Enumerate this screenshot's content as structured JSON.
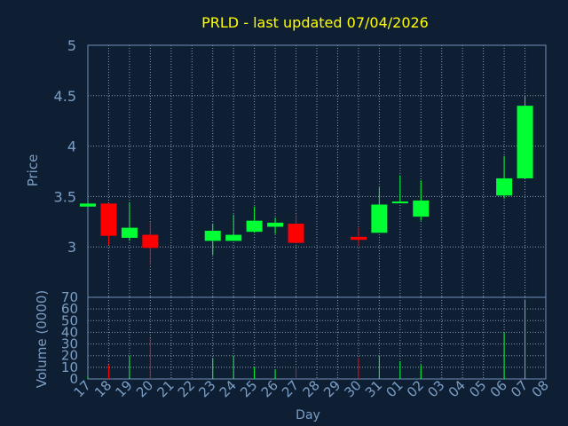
{
  "chart_data": {
    "type": "candlestick",
    "title": "PRLD - last updated 07/04/2026",
    "xlabel": "Day",
    "price_panel": {
      "ylabel": "Price",
      "ylim": [
        2.5,
        5.0
      ],
      "yticks": [
        "3",
        "3.5",
        "4",
        "4.5",
        "5"
      ],
      "ytick_values": [
        3.0,
        3.5,
        4.0,
        4.5,
        5.0
      ],
      "grid": true
    },
    "volume_panel": {
      "ylabel": "Volume (0000)",
      "ylim": [
        0,
        70
      ],
      "yticks": [
        "0",
        "10",
        "20",
        "30",
        "40",
        "50",
        "60",
        "70"
      ],
      "ytick_values": [
        0,
        10,
        20,
        30,
        40,
        50,
        60,
        70
      ],
      "grid": true
    },
    "x_ticks": [
      "17",
      "18",
      "19",
      "20",
      "21",
      "22",
      "23",
      "24",
      "25",
      "26",
      "27",
      "28",
      "29",
      "30",
      "31",
      "01",
      "02",
      "03",
      "04",
      "05",
      "06",
      "07",
      "08"
    ],
    "candles": [
      {
        "day": "17",
        "open": 3.4,
        "close": 3.43,
        "high": 3.44,
        "low": 3.4,
        "volume": 2
      },
      {
        "day": "18",
        "open": 3.43,
        "close": 3.11,
        "high": 3.43,
        "low": 3.02,
        "volume": 12
      },
      {
        "day": "19",
        "open": 3.09,
        "close": 3.19,
        "high": 3.44,
        "low": 3.06,
        "volume": 20
      },
      {
        "day": "20",
        "open": 3.12,
        "close": 2.99,
        "high": 3.25,
        "low": 2.82,
        "volume": 35
      },
      {
        "day": "23",
        "open": 3.06,
        "close": 3.16,
        "high": 3.23,
        "low": 2.92,
        "volume": 18
      },
      {
        "day": "24",
        "open": 3.06,
        "close": 3.12,
        "high": 3.32,
        "low": 3.06,
        "volume": 20
      },
      {
        "day": "25",
        "open": 3.15,
        "close": 3.26,
        "high": 3.4,
        "low": 3.14,
        "volume": 10
      },
      {
        "day": "26",
        "open": 3.2,
        "close": 3.24,
        "high": 3.29,
        "low": 3.13,
        "volume": 8
      },
      {
        "day": "27",
        "open": 3.23,
        "close": 3.04,
        "high": 3.32,
        "low": 3.04,
        "volume": 10
      },
      {
        "day": "30",
        "open": 3.1,
        "close": 3.07,
        "high": 3.19,
        "low": 3.01,
        "volume": 18
      },
      {
        "day": "31",
        "open": 3.14,
        "close": 3.42,
        "high": 3.59,
        "low": 3.14,
        "volume": 20
      },
      {
        "day": "01",
        "open": 3.44,
        "close": 3.45,
        "high": 3.71,
        "low": 3.44,
        "volume": 15
      },
      {
        "day": "02",
        "open": 3.3,
        "close": 3.46,
        "high": 3.66,
        "low": 3.26,
        "volume": 12
      },
      {
        "day": "06",
        "open": 3.51,
        "close": 3.68,
        "high": 3.9,
        "low": 3.48,
        "volume": 40
      },
      {
        "day": "07",
        "open": 3.68,
        "close": 4.4,
        "high": 4.5,
        "low": 3.68,
        "volume": 68
      }
    ],
    "colors": {
      "background": "#0f1f33",
      "up": "#00ff33",
      "down": "#ff0000",
      "title": "#ffff00",
      "axis_text": "#7a9ec5",
      "grid": "#9fb3c8",
      "frame": "#6f8fb5"
    }
  }
}
